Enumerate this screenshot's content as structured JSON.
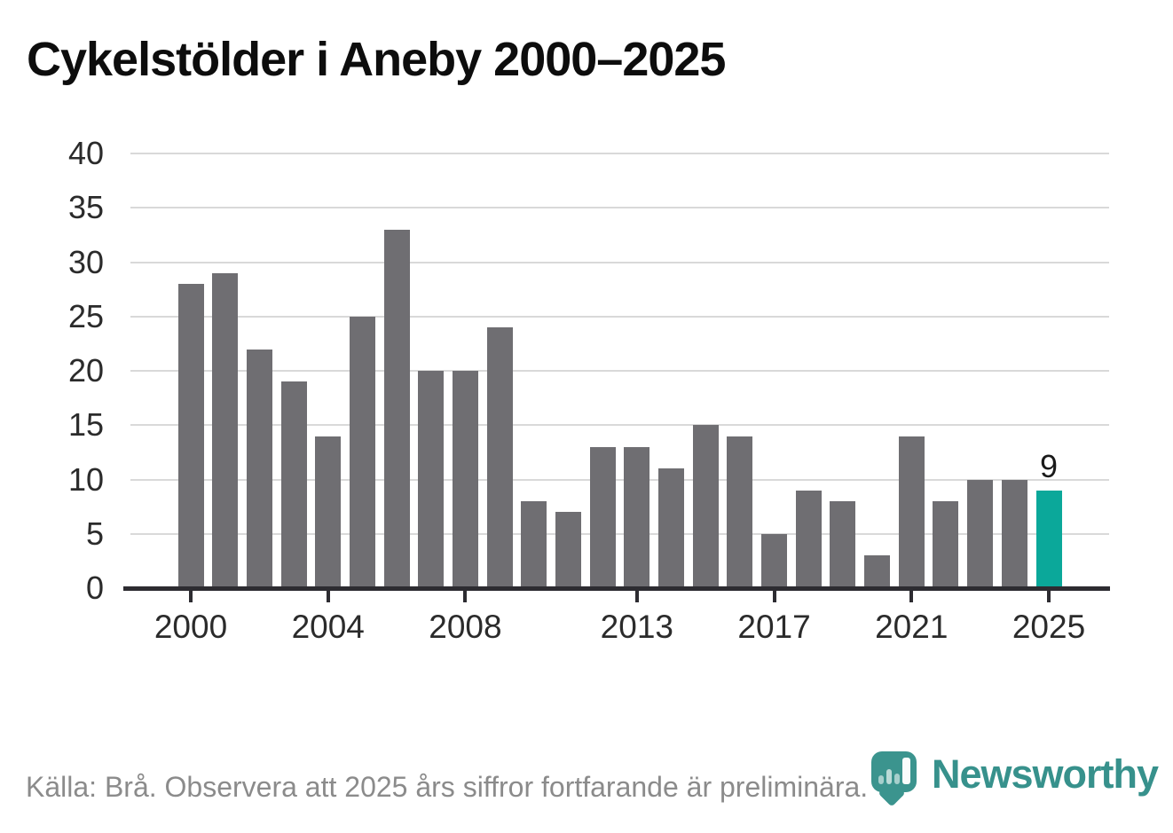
{
  "title": "Cykelstölder i Aneby 2000–2025",
  "chart_data": {
    "type": "bar",
    "title": "Cykelstölder i Aneby 2000–2025",
    "categories": [
      2000,
      2001,
      2002,
      2003,
      2004,
      2005,
      2006,
      2007,
      2008,
      2009,
      2010,
      2011,
      2012,
      2013,
      2014,
      2015,
      2016,
      2017,
      2018,
      2019,
      2020,
      2021,
      2022,
      2023,
      2024,
      2025
    ],
    "values": [
      28,
      29,
      22,
      19,
      14,
      25,
      33,
      20,
      20,
      24,
      8,
      7,
      13,
      13,
      11,
      15,
      14,
      5,
      9,
      8,
      3,
      14,
      8,
      10,
      10,
      9
    ],
    "xlabel": "",
    "ylabel": "",
    "ylim": [
      0,
      40
    ],
    "yticks": [
      0,
      5,
      10,
      15,
      20,
      25,
      30,
      35,
      40
    ],
    "xtick_years": [
      2000,
      2004,
      2008,
      2013,
      2017,
      2021,
      2025
    ],
    "grid": true,
    "legend_position": "none",
    "bar_color": "#6f6e72",
    "highlight_year": 2025,
    "highlight_color": "#0ba89a",
    "annotation": {
      "year": 2025,
      "text": "9"
    }
  },
  "footer": {
    "source_note": "Källa: Brå. Observera att 2025 års siffror fortfarande är preliminära."
  },
  "branding": {
    "logo_name": "newsworthy-logo",
    "logo_text": "Newsworthy",
    "logo_color": "#37918c",
    "pin_color": "#3b948e",
    "pin_icon": "bar-chart-pin-icon"
  }
}
